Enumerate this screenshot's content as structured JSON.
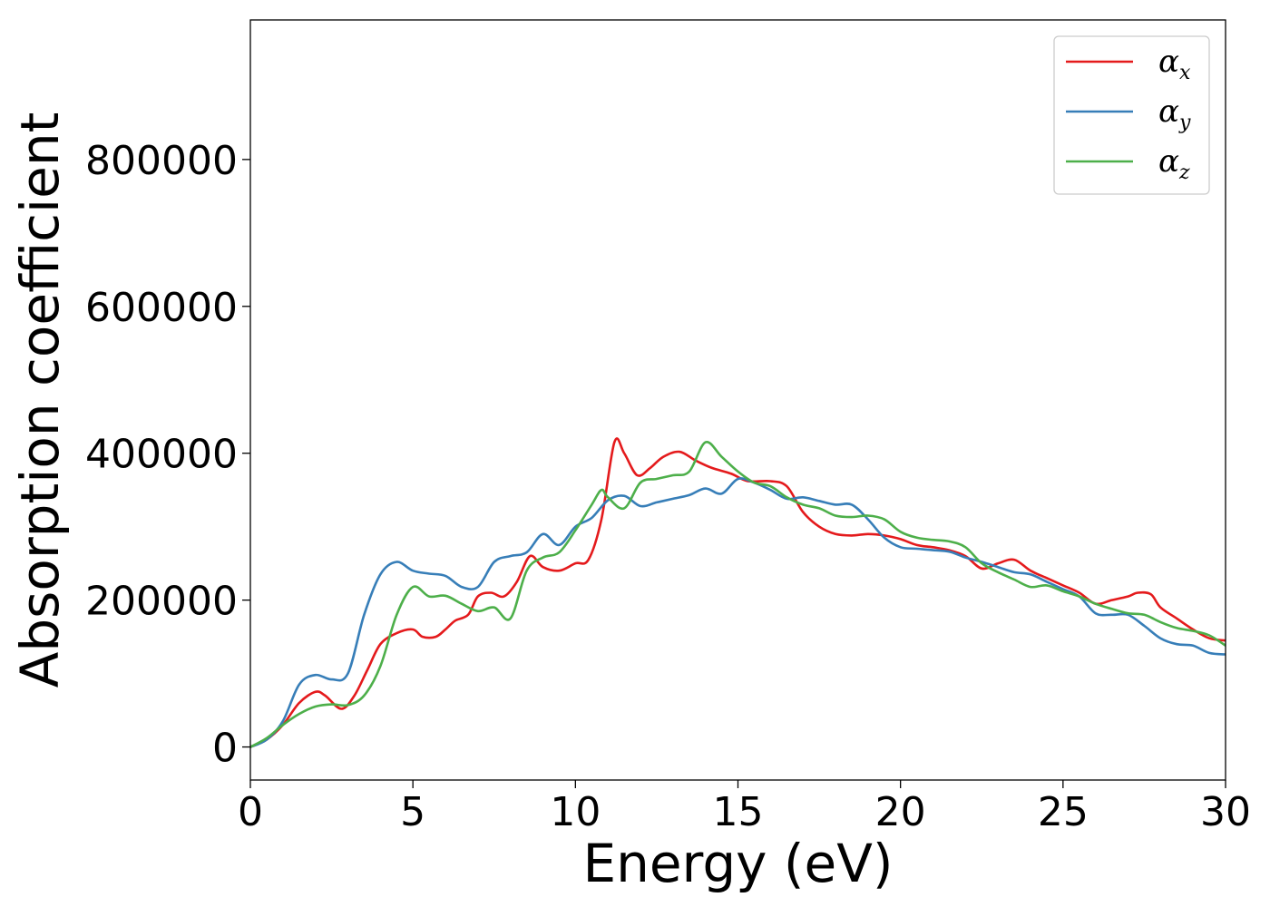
{
  "chart_data": {
    "type": "line",
    "xlabel": "Energy (eV)",
    "ylabel": "Absorption coefficient",
    "xlim": [
      0,
      30
    ],
    "ylim": [
      -45000,
      990000
    ],
    "xticks": [
      0,
      5,
      10,
      15,
      20,
      25,
      30
    ],
    "xtick_labels": [
      "0",
      "5",
      "10",
      "15",
      "20",
      "25",
      "30"
    ],
    "yticks": [
      0,
      200000,
      400000,
      600000,
      800000
    ],
    "ytick_labels": [
      "0",
      "200000",
      "400000",
      "600000",
      "800000"
    ],
    "grid": false,
    "legend_position": "top-right",
    "series": [
      {
        "name": "α_x",
        "legend_symbol": "α",
        "legend_subscript": "x",
        "color": "#e41a1c",
        "x": [
          0,
          0.5,
          1,
          1.5,
          2,
          2.3,
          2.8,
          3.2,
          3.6,
          4,
          4.5,
          5,
          5.3,
          5.7,
          6,
          6.3,
          6.7,
          7,
          7.4,
          7.8,
          8.2,
          8.6,
          9,
          9.5,
          10,
          10.4,
          10.8,
          11.2,
          11.5,
          11.9,
          12.3,
          12.7,
          13.2,
          13.7,
          14.2,
          14.8,
          15.3,
          16,
          16.5,
          17,
          17.5,
          18,
          18.5,
          19,
          19.5,
          20,
          20.5,
          21,
          21.5,
          22,
          22.5,
          23,
          23.5,
          24,
          24.5,
          25,
          25.5,
          26,
          26.5,
          27,
          27.3,
          27.7,
          28,
          28.5,
          29,
          29.5,
          30
        ],
        "y": [
          0,
          10000,
          30000,
          60000,
          75000,
          70000,
          52000,
          70000,
          105000,
          140000,
          155000,
          160000,
          150000,
          150000,
          160000,
          172000,
          180000,
          205000,
          210000,
          205000,
          225000,
          260000,
          245000,
          240000,
          250000,
          255000,
          310000,
          415000,
          400000,
          370000,
          380000,
          395000,
          402000,
          390000,
          380000,
          372000,
          362000,
          362000,
          355000,
          320000,
          300000,
          290000,
          288000,
          290000,
          288000,
          283000,
          275000,
          272000,
          268000,
          260000,
          243000,
          250000,
          255000,
          240000,
          230000,
          220000,
          210000,
          195000,
          200000,
          205000,
          210000,
          208000,
          190000,
          175000,
          160000,
          148000,
          145000
        ]
      },
      {
        "name": "α_y",
        "legend_symbol": "α",
        "legend_subscript": "y",
        "color": "#377eb8",
        "x": [
          0,
          0.5,
          1,
          1.5,
          2,
          2.5,
          3,
          3.5,
          4,
          4.5,
          5,
          5.5,
          6,
          6.5,
          7,
          7.5,
          8,
          8.5,
          9,
          9.5,
          10,
          10.5,
          11,
          11.5,
          12,
          12.5,
          13,
          13.5,
          14,
          14.5,
          15,
          15.5,
          16,
          16.5,
          17,
          17.5,
          18,
          18.5,
          19,
          19.5,
          20,
          20.5,
          21,
          21.5,
          22,
          22.5,
          23,
          23.5,
          24,
          24.5,
          25,
          25.5,
          26,
          26.5,
          27,
          27.5,
          28,
          28.5,
          29,
          29.5,
          30
        ],
        "y": [
          0,
          10000,
          35000,
          85000,
          98000,
          92000,
          100000,
          180000,
          235000,
          252000,
          240000,
          236000,
          233000,
          218000,
          218000,
          252000,
          260000,
          265000,
          290000,
          275000,
          300000,
          312000,
          336000,
          342000,
          328000,
          333000,
          338000,
          343000,
          352000,
          345000,
          365000,
          360000,
          350000,
          338000,
          340000,
          335000,
          330000,
          330000,
          310000,
          285000,
          272000,
          270000,
          268000,
          266000,
          258000,
          252000,
          245000,
          238000,
          235000,
          225000,
          215000,
          205000,
          182000,
          180000,
          180000,
          165000,
          148000,
          140000,
          138000,
          128000,
          126000
        ]
      },
      {
        "name": "α_z",
        "legend_symbol": "α",
        "legend_subscript": "z",
        "color": "#4daf4a",
        "x": [
          0,
          0.5,
          1,
          1.5,
          2,
          2.5,
          3,
          3.5,
          4,
          4.5,
          5,
          5.5,
          6,
          6.5,
          7,
          7.5,
          8,
          8.5,
          9,
          9.5,
          10,
          10.5,
          10.8,
          11,
          11.5,
          12,
          12.5,
          13,
          13.5,
          14,
          14.5,
          15,
          15.5,
          16,
          16.5,
          17,
          17.5,
          18,
          18.5,
          19,
          19.5,
          20,
          20.5,
          21,
          21.5,
          22,
          22.5,
          23,
          23.5,
          24,
          24.5,
          25,
          25.5,
          26,
          26.5,
          27,
          27.5,
          28,
          28.5,
          29,
          29.5,
          30
        ],
        "y": [
          0,
          12000,
          30000,
          45000,
          55000,
          58000,
          57000,
          70000,
          110000,
          180000,
          218000,
          205000,
          206000,
          195000,
          185000,
          190000,
          175000,
          240000,
          258000,
          265000,
          295000,
          330000,
          350000,
          340000,
          325000,
          360000,
          365000,
          370000,
          375000,
          415000,
          395000,
          375000,
          360000,
          355000,
          340000,
          330000,
          325000,
          315000,
          313000,
          315000,
          310000,
          293000,
          285000,
          282000,
          280000,
          272000,
          250000,
          238000,
          228000,
          218000,
          220000,
          212000,
          205000,
          195000,
          188000,
          182000,
          180000,
          170000,
          162000,
          158000,
          152000,
          138000
        ]
      }
    ]
  }
}
